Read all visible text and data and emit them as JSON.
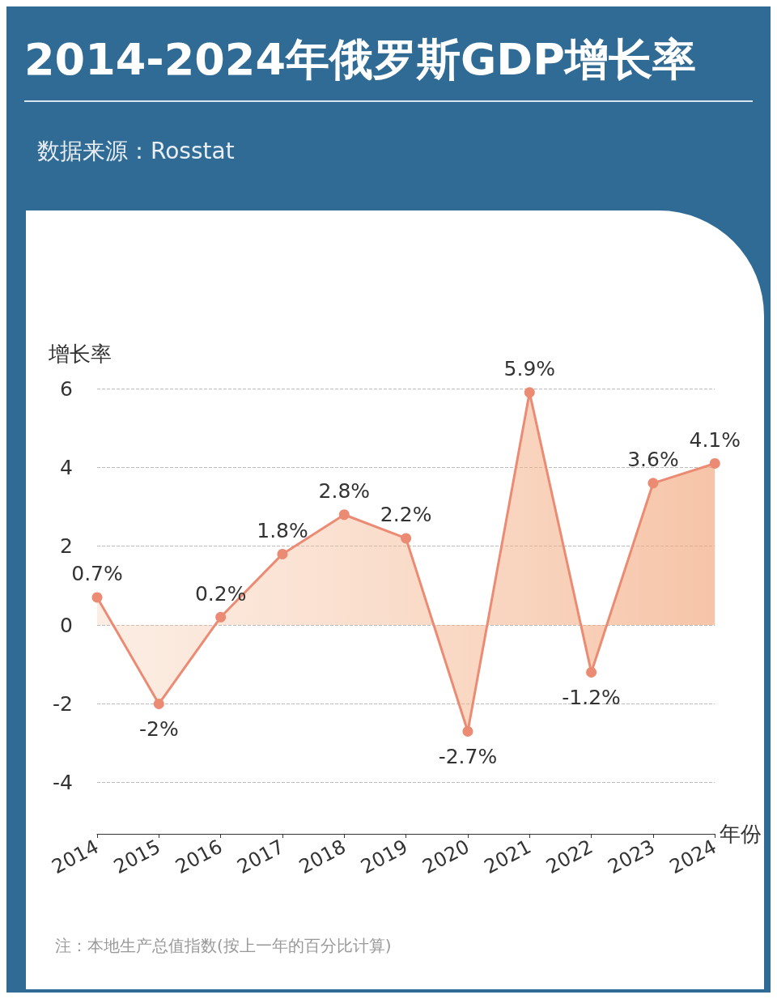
{
  "chart_data": {
    "type": "area",
    "title": "2014-2024年俄罗斯GDP增长率",
    "ylabel": "增长率",
    "xlabel": "年份",
    "annotations": [
      "数据来源：Rosstat",
      "注：本地生产总值指数(按上一年的百分比计算)"
    ],
    "categories": [
      "2014",
      "2015",
      "2016",
      "2017",
      "2018",
      "2019",
      "2020",
      "2021",
      "2022",
      "2023",
      "2024"
    ],
    "series": [
      {
        "color": "#ec8b73",
        "values": [
          0.7,
          -2,
          0.2,
          1.8,
          2.8,
          2.2,
          -2.7,
          5.9,
          -1.2,
          3.6,
          4.1
        ],
        "value_labels": [
          "0.7%",
          "-2%",
          "0.2%",
          "1.8%",
          "2.8%",
          "2.2%",
          "-2.7%",
          "5.9%",
          "-1.2%",
          "3.6%",
          "4.1%"
        ]
      }
    ],
    "ylim": [
      -5.3,
      6
    ],
    "yticks": [
      -4,
      -2,
      0,
      2,
      4,
      6
    ],
    "grid": "y",
    "marker": "circle",
    "line_style": "solid"
  }
}
